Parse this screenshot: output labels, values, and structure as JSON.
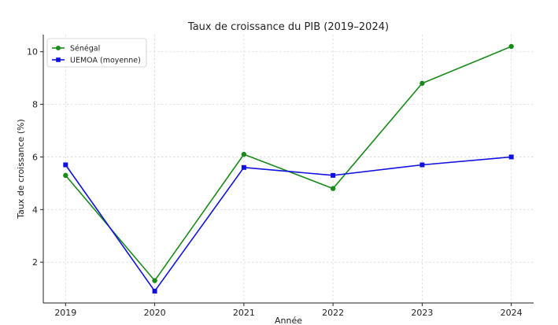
{
  "chart_data": {
    "type": "line",
    "title": "Taux de croissance du PIB (2019–2024)",
    "xlabel": "Année",
    "ylabel": "Taux de croissance (%)",
    "x": [
      "2019",
      "2020",
      "2021",
      "2022",
      "2023",
      "2024"
    ],
    "x_values": [
      2019,
      2020,
      2021,
      2022,
      2023,
      2024
    ],
    "yticks": [
      "2",
      "4",
      "6",
      "8",
      "10"
    ],
    "ytick_values": [
      2,
      4,
      6,
      8,
      10
    ],
    "ylim": [
      0.45,
      10.65
    ],
    "xlim": [
      2018.75,
      2024.25
    ],
    "grid": true,
    "legend_position": "top-left",
    "series": [
      {
        "name": "Sénégal",
        "color": "#1a8a1a",
        "marker": "circle",
        "values": [
          5.3,
          1.3,
          6.1,
          4.8,
          8.8,
          10.2
        ]
      },
      {
        "name": "UEMOA (moyenne)",
        "color": "#1010e0",
        "marker": "square",
        "values": [
          5.7,
          0.9,
          5.6,
          5.3,
          5.7,
          6.0
        ]
      }
    ]
  }
}
